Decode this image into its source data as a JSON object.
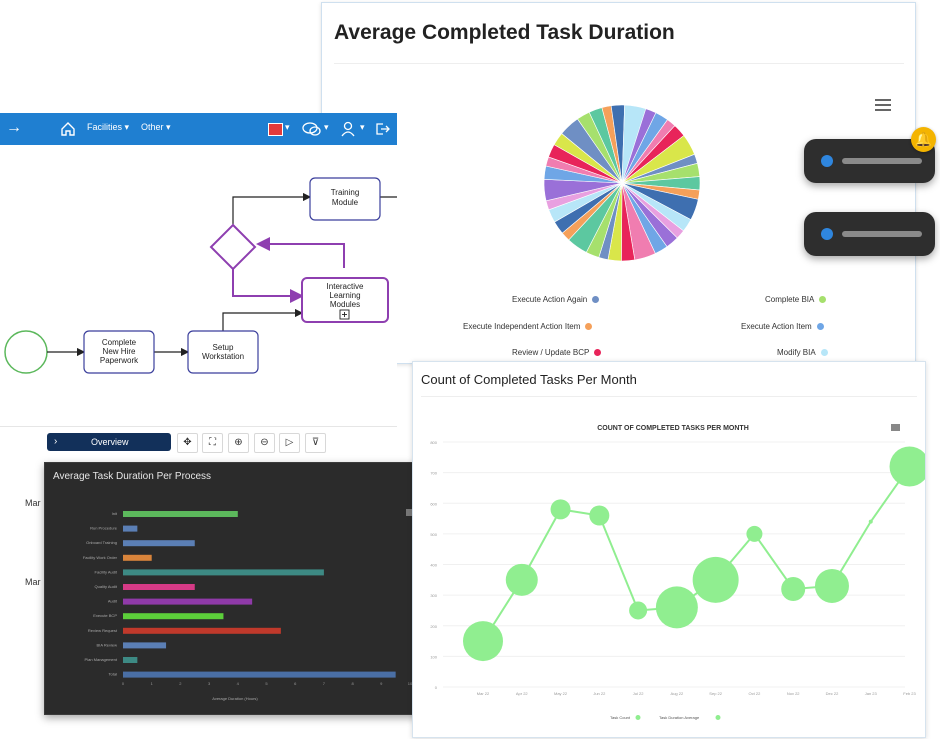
{
  "pie_card": {
    "title": "Average Completed Task Duration",
    "menu_icon": "hamburger-icon",
    "legend": [
      {
        "label": "Execute Action Again",
        "color": "#6f8fc4"
      },
      {
        "label": "Complete BIA",
        "color": "#a6e06d"
      },
      {
        "label": "Execute Independent Action Item",
        "color": "#f5a05a"
      },
      {
        "label": "Execute Action Item",
        "color": "#6fa6e6"
      },
      {
        "label": "Review / Update BCP",
        "color": "#e8245a"
      },
      {
        "label": "Modify BIA",
        "color": "#b7e6f8"
      }
    ]
  },
  "process_panel": {
    "topbar": {
      "menu_icon": "arrow-right-icon",
      "home_icon": "home-icon",
      "menu1": "Facilities ▾",
      "menu2": "Other ▾",
      "flag_icon": "flag-icon",
      "chat_icon": "chat-icon",
      "user_icon": "user-icon",
      "exit_icon": "exit-icon"
    },
    "nodes": {
      "training": [
        "Training",
        "Module"
      ],
      "learning": [
        "Interactive",
        "Learning",
        "Modules"
      ],
      "paperwork": [
        "Complete",
        "New Hire",
        "Paperwork"
      ],
      "workstation": [
        "Setup",
        "Workstation"
      ]
    },
    "overview_label": "Overview",
    "tools": [
      "✥",
      "⛶",
      "⊕",
      "⊖",
      "▷",
      "⊽"
    ],
    "row_labels": [
      "Mar",
      "Mar"
    ]
  },
  "bar_chart_card": {
    "title": "Average Task Duration Per Process",
    "chart_data": {
      "type": "bar",
      "orientation": "horizontal",
      "title": "Average Task Duration Per Process",
      "xlabel": "Average Duration (Hours)",
      "categories": [
        "Init",
        "Run Procedure",
        "Onboard Training",
        "Facility Work Order",
        "Facility Audit",
        "Quality Audit",
        "Audit",
        "Execute BCP",
        "Review Request",
        "BIA Review",
        "Plan Management",
        "Total"
      ],
      "values": [
        4,
        0.5,
        2.5,
        1,
        7,
        2.5,
        4.5,
        3.5,
        5.5,
        1.5,
        0.5,
        9.5
      ],
      "colors": [
        "#5cb85c",
        "#5b7fb5",
        "#5b7fb5",
        "#d9843b",
        "#3d8a84",
        "#d63a86",
        "#8f3aa8",
        "#5ccf3a",
        "#c0392b",
        "#5b7fb5",
        "#3d8a84",
        "#4a6fa5"
      ],
      "xlim": [
        0,
        10
      ],
      "x_ticks": [
        "0",
        "1",
        "2",
        "3",
        "4",
        "5",
        "6",
        "7",
        "8",
        "9",
        "10"
      ]
    }
  },
  "line_chart_card": {
    "title": "Count of Completed Tasks Per Month",
    "chart_data": {
      "type": "scatter",
      "title": "COUNT OF COMPLETED TASKS PER MONTH",
      "categories": [
        "Mar 22",
        "Apr 22",
        "May 22",
        "Jun 22",
        "Jul 22",
        "Aug 22",
        "Sep 22",
        "Oct 22",
        "Nov 22",
        "Dec 22",
        "Jan 23",
        "Feb 23"
      ],
      "series": [
        {
          "name": "Task Count",
          "values": [
            150,
            350,
            580,
            560,
            250,
            260,
            350,
            500,
            320,
            330,
            540,
            720
          ]
        },
        {
          "name": "Task Duration Average",
          "values": [
            20,
            16,
            10,
            10,
            9,
            21,
            23,
            8,
            12,
            17,
            2,
            20
          ]
        }
      ],
      "ylim": [
        0,
        800
      ],
      "y_ticks": [
        "0",
        "100",
        "200",
        "300",
        "400",
        "500",
        "600",
        "700",
        "800"
      ],
      "legend": [
        "Task Count",
        "Task Duration Average"
      ],
      "color": "#90ee90"
    }
  }
}
